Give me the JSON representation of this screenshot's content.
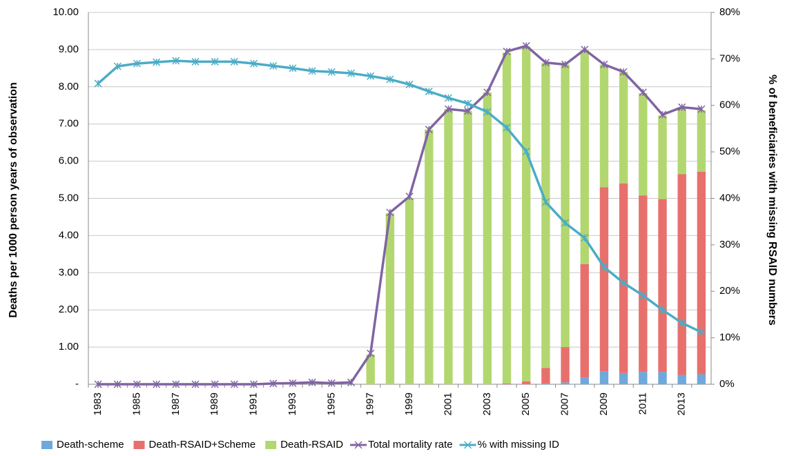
{
  "chart_data": {
    "type": "bar",
    "stacked": true,
    "y_label": "Deaths per 1000 person years of observation",
    "y2_label": "% of beneficiaries with missing RSAID numbers",
    "categories": [
      "1983",
      null,
      "1985",
      null,
      "1987",
      null,
      "1989",
      null,
      "1991",
      null,
      "1993",
      null,
      "1995",
      null,
      "1997",
      null,
      "1999",
      null,
      "2001",
      null,
      "2003",
      null,
      "2005",
      null,
      "2007",
      null,
      "2009",
      null,
      "2011",
      null,
      "2013",
      null
    ],
    "ylim": [
      0,
      10
    ],
    "yticks": [
      {
        "value": 0,
        "label": "-"
      },
      {
        "value": 1,
        "label": "1.00"
      },
      {
        "value": 2,
        "label": "2.00"
      },
      {
        "value": 3,
        "label": "3.00"
      },
      {
        "value": 4,
        "label": "4.00"
      },
      {
        "value": 5,
        "label": "5.00"
      },
      {
        "value": 6,
        "label": "6.00"
      },
      {
        "value": 7,
        "label": "7.00"
      },
      {
        "value": 8,
        "label": "8.00"
      },
      {
        "value": 9,
        "label": "9.00"
      },
      {
        "value": 10,
        "label": "10.00"
      }
    ],
    "y2lim": [
      0,
      80
    ],
    "y2ticks": [
      {
        "value": 0,
        "label": "0%"
      },
      {
        "value": 10,
        "label": "10%"
      },
      {
        "value": 20,
        "label": "20%"
      },
      {
        "value": 30,
        "label": "30%"
      },
      {
        "value": 40,
        "label": "40%"
      },
      {
        "value": 50,
        "label": "50%"
      },
      {
        "value": 60,
        "label": "60%"
      },
      {
        "value": 70,
        "label": "70%"
      },
      {
        "value": 80,
        "label": "80%"
      }
    ],
    "grid": true,
    "legend": "bottom",
    "series": [
      {
        "name": "Death-scheme",
        "type": "bar",
        "color": "#6fa8dc",
        "values": [
          0,
          0,
          0,
          0,
          0,
          0,
          0,
          0,
          0,
          0,
          0,
          0,
          0,
          0,
          0,
          0,
          0,
          0,
          0,
          0,
          0,
          0,
          0,
          0.02,
          0.05,
          0.18,
          0.35,
          0.3,
          0.33,
          0.33,
          0.25,
          0.27
        ]
      },
      {
        "name": "Death-RSAID+Scheme",
        "type": "bar",
        "color": "#e8706c",
        "values": [
          0,
          0,
          0,
          0,
          0,
          0,
          0,
          0,
          0,
          0,
          0,
          0,
          0,
          0,
          0,
          0,
          0,
          0,
          0,
          0,
          0,
          0.02,
          0.08,
          0.42,
          0.95,
          3.05,
          4.95,
          5.1,
          4.75,
          4.65,
          5.4,
          5.45
        ]
      },
      {
        "name": "Death-RSAID",
        "type": "bar",
        "color": "#b3d770",
        "values": [
          0,
          0,
          0,
          0,
          0,
          0,
          0,
          0,
          0,
          0,
          0,
          0,
          0,
          0,
          0.8,
          4.6,
          5.0,
          6.85,
          7.4,
          7.35,
          7.85,
          8.9,
          9.0,
          8.2,
          7.6,
          5.75,
          3.3,
          3.0,
          2.75,
          2.25,
          1.8,
          1.65
        ]
      },
      {
        "name": "Total mortality rate",
        "type": "line",
        "color": "#8064a2",
        "values": [
          0,
          0,
          0,
          0,
          0,
          0,
          0,
          0,
          0,
          0.02,
          0.03,
          0.05,
          0.03,
          0.05,
          0.83,
          4.62,
          5.05,
          6.85,
          7.4,
          7.35,
          7.85,
          8.95,
          9.1,
          8.65,
          8.6,
          9.0,
          8.6,
          8.4,
          7.85,
          7.25,
          7.45,
          7.4
        ]
      },
      {
        "name": "% with missing ID",
        "type": "line",
        "axis": "y2",
        "color": "#4bacc6",
        "values": [
          64.7,
          68.4,
          69,
          69.3,
          69.6,
          69.4,
          69.4,
          69.4,
          69,
          68.5,
          68,
          67.4,
          67.2,
          66.9,
          66.3,
          65.6,
          64.5,
          63,
          61.6,
          60.4,
          58.6,
          55.2,
          50.1,
          39.2,
          34.7,
          31.5,
          25.2,
          21.8,
          19.1,
          16,
          13.2,
          11.2
        ]
      }
    ]
  }
}
